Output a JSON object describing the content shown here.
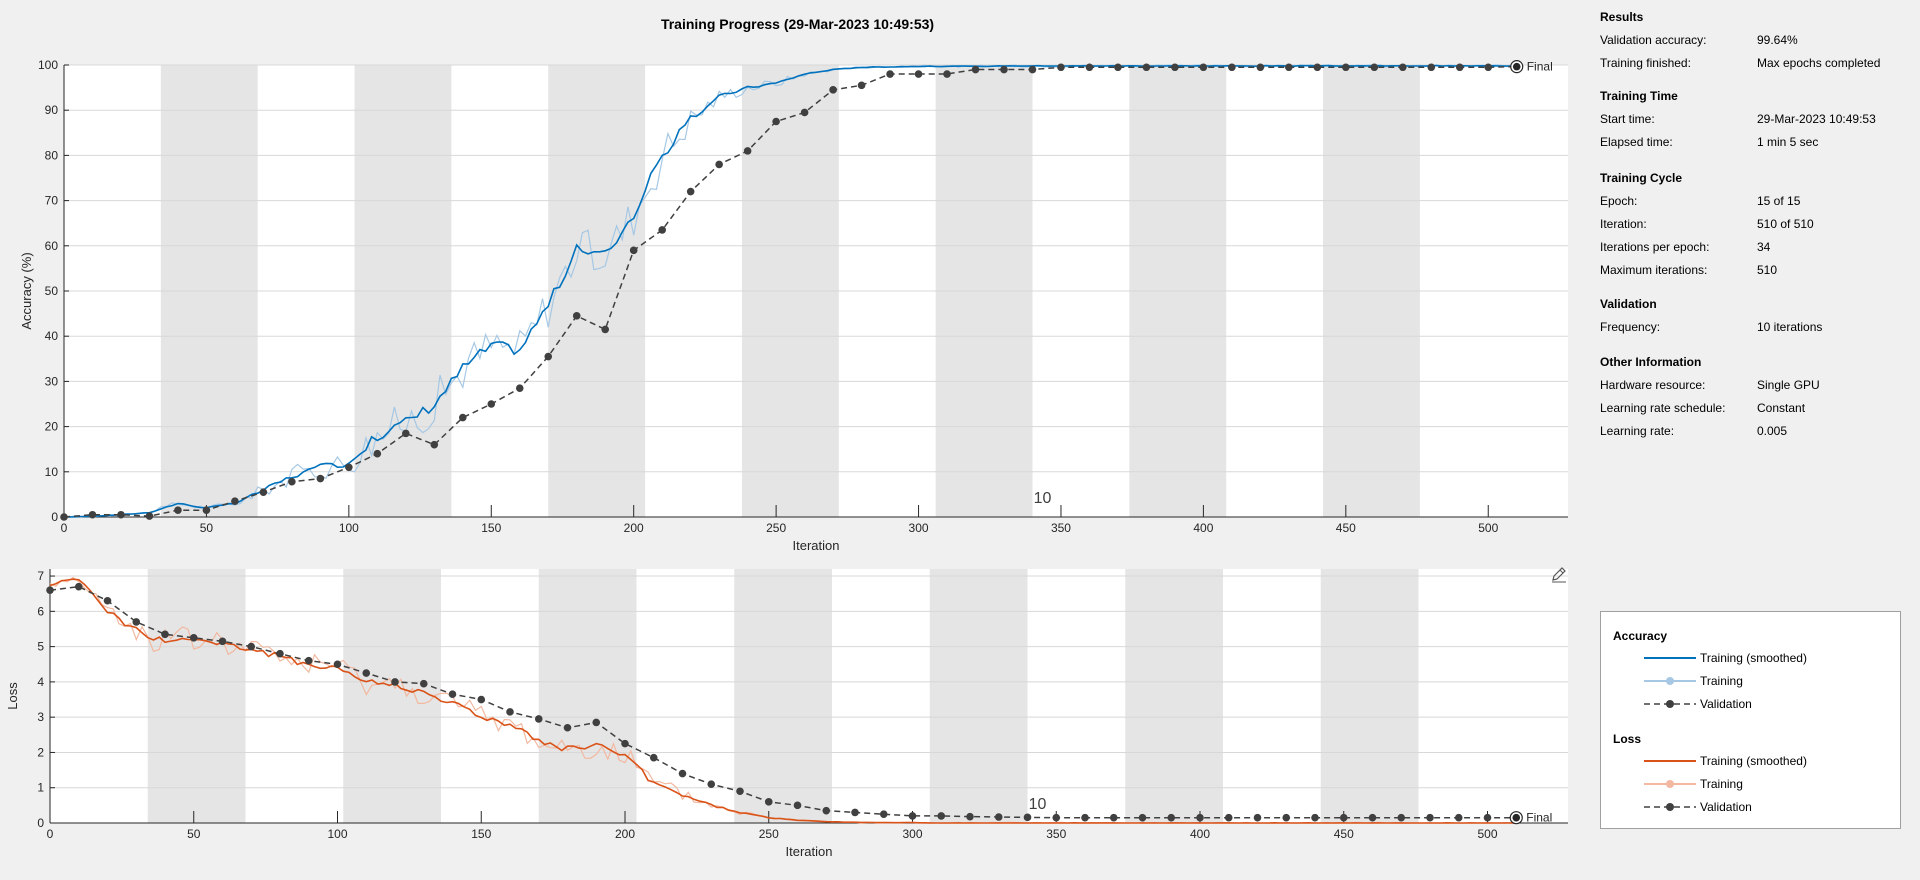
{
  "title": "Training Progress (29-Mar-2023 10:49:53)",
  "info": {
    "sections": [
      {
        "title": "Results",
        "rows": [
          {
            "label": "Validation accuracy:",
            "value": "99.64%"
          },
          {
            "label": "Training finished:",
            "value": "Max epochs completed"
          }
        ]
      },
      {
        "title": "Training Time",
        "rows": [
          {
            "label": "Start time:",
            "value": "29-Mar-2023 10:49:53"
          },
          {
            "label": "Elapsed time:",
            "value": "1 min 5 sec"
          }
        ]
      },
      {
        "title": "Training Cycle",
        "rows": [
          {
            "label": "Epoch:",
            "value": "15 of 15"
          },
          {
            "label": "Iteration:",
            "value": "510 of 510"
          },
          {
            "label": "Iterations per epoch:",
            "value": "34"
          },
          {
            "label": "Maximum iterations:",
            "value": "510"
          }
        ]
      },
      {
        "title": "Validation",
        "rows": [
          {
            "label": "Frequency:",
            "value": "10 iterations"
          }
        ]
      },
      {
        "title": "Other Information",
        "rows": [
          {
            "label": "Hardware resource:",
            "value": "Single GPU"
          },
          {
            "label": "Learning rate schedule:",
            "value": "Constant"
          },
          {
            "label": "Learning rate:",
            "value": "0.005"
          }
        ]
      }
    ]
  },
  "legend": {
    "accuracy_title": "Accuracy",
    "accuracy_items": [
      "Training (smoothed)",
      "Training",
      "Validation"
    ],
    "loss_title": "Loss",
    "loss_items": [
      "Training (smoothed)",
      "Training",
      "Validation"
    ]
  },
  "colors": {
    "acc_smooth": "#0072bd",
    "acc_raw": "#a6c8e4",
    "loss_smooth": "#d95319",
    "loss_raw": "#f2b8a0",
    "validation": "#404040",
    "epoch_band": "#e5e5e5"
  },
  "icons": {
    "edit": "edit-pen-icon",
    "final": "final-marker-icon"
  },
  "chart_data": [
    {
      "type": "line",
      "name": "accuracy",
      "xlabel": "Iteration",
      "ylabel": "Accuracy (%)",
      "xlim": [
        0,
        528
      ],
      "ylim": [
        0,
        100
      ],
      "xticks": [
        0,
        50,
        100,
        150,
        200,
        250,
        300,
        350,
        400,
        450,
        500
      ],
      "yticks": [
        0,
        10,
        20,
        30,
        40,
        50,
        60,
        70,
        80,
        90,
        100
      ],
      "grid": true,
      "iterations_per_epoch": 34,
      "epochs": 15,
      "epoch_label": "10",
      "end_label": "Final",
      "smoothed": {
        "x": [
          0,
          10,
          20,
          30,
          40,
          50,
          60,
          70,
          80,
          90,
          100,
          110,
          120,
          130,
          140,
          150,
          160,
          170,
          180,
          190,
          200,
          210,
          220,
          230,
          240,
          250,
          260,
          270,
          280,
          290,
          300,
          310,
          320,
          330,
          340,
          350,
          360,
          370,
          380,
          390,
          400,
          410,
          420,
          430,
          440,
          450,
          460,
          470,
          480,
          490,
          500,
          510
        ],
        "y": [
          0,
          0.2,
          0.5,
          1,
          3,
          2,
          3,
          6,
          9,
          11,
          12,
          18,
          21,
          25,
          33,
          38,
          37,
          47,
          59,
          58,
          67,
          80,
          88,
          93,
          95,
          96,
          98,
          99,
          99.5,
          99.6,
          99.7,
          99.7,
          99.7,
          99.8,
          99.8,
          99.8,
          99.8,
          99.8,
          99.8,
          99.8,
          99.8,
          99.8,
          99.8,
          99.8,
          99.8,
          99.8,
          99.8,
          99.8,
          99.8,
          99.8,
          99.8,
          99.8
        ]
      },
      "validation": {
        "x": [
          0,
          10,
          20,
          30,
          40,
          50,
          60,
          70,
          80,
          90,
          100,
          110,
          120,
          130,
          140,
          150,
          160,
          170,
          180,
          190,
          200,
          210,
          220,
          230,
          240,
          250,
          260,
          270,
          280,
          290,
          300,
          310,
          320,
          330,
          340,
          350,
          360,
          370,
          380,
          390,
          400,
          410,
          420,
          430,
          440,
          450,
          460,
          470,
          480,
          490,
          500,
          510
        ],
        "y": [
          0,
          0.5,
          0.5,
          0.2,
          1.5,
          1.5,
          3.5,
          5.5,
          7.8,
          8.5,
          11,
          14,
          18.5,
          16,
          22,
          25,
          28.5,
          35.5,
          44.5,
          41.5,
          59,
          63.5,
          72,
          78,
          81,
          87.5,
          89.5,
          94.5,
          95.5,
          98,
          98,
          98,
          99,
          99,
          99,
          99.5,
          99.5,
          99.5,
          99.5,
          99.5,
          99.5,
          99.5,
          99.5,
          99.5,
          99.5,
          99.5,
          99.5,
          99.5,
          99.5,
          99.5,
          99.5,
          99.64
        ]
      }
    },
    {
      "type": "line",
      "name": "loss",
      "xlabel": "Iteration",
      "ylabel": "Loss",
      "xlim": [
        0,
        528
      ],
      "ylim": [
        0,
        7.2
      ],
      "xticks": [
        0,
        50,
        100,
        150,
        200,
        250,
        300,
        350,
        400,
        450,
        500
      ],
      "yticks": [
        0,
        1,
        2,
        3,
        4,
        5,
        6,
        7
      ],
      "grid": true,
      "iterations_per_epoch": 34,
      "epochs": 15,
      "epoch_label": "10",
      "end_label": "Final",
      "smoothed": {
        "x": [
          0,
          5,
          10,
          15,
          20,
          25,
          30,
          35,
          40,
          50,
          60,
          70,
          80,
          90,
          100,
          110,
          120,
          130,
          140,
          150,
          160,
          170,
          180,
          190,
          200,
          210,
          220,
          230,
          240,
          250,
          260,
          270,
          280,
          290,
          300,
          310,
          320,
          340,
          360,
          380,
          400,
          450,
          510
        ],
        "y": [
          6.7,
          6.9,
          6.9,
          6.5,
          6.0,
          5.7,
          5.5,
          5.2,
          5.2,
          5.2,
          5.1,
          4.9,
          4.7,
          4.5,
          4.4,
          4.0,
          3.9,
          3.7,
          3.4,
          3.0,
          2.8,
          2.3,
          2.1,
          2.2,
          1.9,
          1.1,
          0.8,
          0.5,
          0.3,
          0.15,
          0.08,
          0.04,
          0.02,
          0.01,
          0.01,
          0.0,
          0.0,
          0.0,
          0.0,
          0.0,
          0.0,
          0.0,
          0.0
        ]
      },
      "validation": {
        "x": [
          0,
          10,
          20,
          30,
          40,
          50,
          60,
          70,
          80,
          90,
          100,
          110,
          120,
          130,
          140,
          150,
          160,
          170,
          180,
          190,
          200,
          210,
          220,
          230,
          240,
          250,
          260,
          270,
          280,
          290,
          300,
          310,
          320,
          330,
          340,
          350,
          360,
          370,
          380,
          390,
          400,
          410,
          420,
          430,
          440,
          450,
          460,
          470,
          480,
          490,
          500,
          510
        ],
        "y": [
          6.6,
          6.7,
          6.3,
          5.7,
          5.35,
          5.25,
          5.15,
          5.0,
          4.8,
          4.6,
          4.5,
          4.25,
          4.0,
          3.95,
          3.65,
          3.5,
          3.15,
          2.95,
          2.7,
          2.85,
          2.25,
          1.85,
          1.4,
          1.1,
          0.9,
          0.6,
          0.5,
          0.35,
          0.3,
          0.25,
          0.2,
          0.2,
          0.18,
          0.17,
          0.16,
          0.15,
          0.15,
          0.15,
          0.15,
          0.15,
          0.15,
          0.15,
          0.15,
          0.15,
          0.15,
          0.15,
          0.15,
          0.15,
          0.15,
          0.15,
          0.15,
          0.15
        ]
      }
    }
  ]
}
